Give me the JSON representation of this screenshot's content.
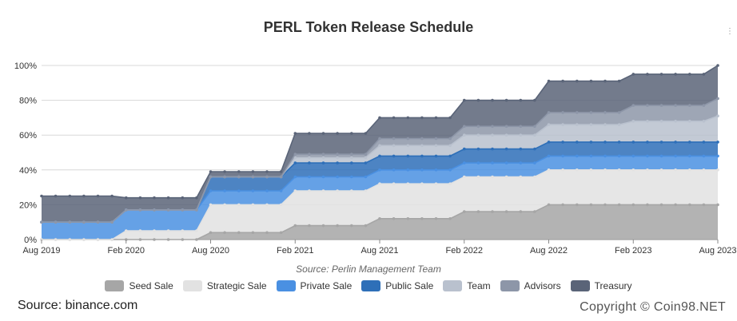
{
  "header": {
    "title": "PERL Token Release Schedule"
  },
  "corner_mark": "⋮",
  "source_note": "Source: Perlin Management Team",
  "footer": {
    "left": "Source: binance.com",
    "right": "Copyright © Coin98.NET"
  },
  "chart_data": {
    "type": "area",
    "stacked": true,
    "title": "PERL Token Release Schedule",
    "xlabel": "",
    "ylabel": "",
    "x_ticks": [
      "Aug 2019",
      "Feb 2020",
      "Aug 2020",
      "Feb 2021",
      "Aug 2021",
      "Feb 2022",
      "Aug 2022",
      "Feb 2023",
      "Aug 2023"
    ],
    "y_ticks": [
      "0%",
      "20%",
      "40%",
      "60%",
      "80%",
      "100%"
    ],
    "ylim": [
      0,
      100
    ],
    "grid": true,
    "legend_position": "bottom",
    "x": [
      "Aug 2019",
      "Sep 2019",
      "Oct 2019",
      "Nov 2019",
      "Dec 2019",
      "Jan 2020",
      "Feb 2020",
      "Mar 2020",
      "Apr 2020",
      "May 2020",
      "Jun 2020",
      "Jul 2020",
      "Aug 2020",
      "Sep 2020",
      "Oct 2020",
      "Nov 2020",
      "Dec 2020",
      "Jan 2021",
      "Feb 2021",
      "Mar 2021",
      "Apr 2021",
      "May 2021",
      "Jun 2021",
      "Jul 2021",
      "Aug 2021",
      "Sep 2021",
      "Oct 2021",
      "Nov 2021",
      "Dec 2021",
      "Jan 2022",
      "Feb 2022",
      "Mar 2022",
      "Apr 2022",
      "May 2022",
      "Jun 2022",
      "Jul 2022",
      "Aug 2022",
      "Sep 2022",
      "Oct 2022",
      "Nov 2022",
      "Dec 2022",
      "Jan 2023",
      "Feb 2023",
      "Mar 2023",
      "Apr 2023",
      "May 2023",
      "Jun 2023",
      "Jul 2023",
      "Aug 2023"
    ],
    "series": [
      {
        "name": "Seed Sale",
        "color": "#a6a6a6",
        "values": [
          0,
          0,
          0,
          0,
          0,
          0,
          0,
          0,
          0,
          0,
          0,
          0,
          4,
          4,
          4,
          4,
          4,
          4,
          8,
          8,
          8,
          8,
          8,
          8,
          12,
          12,
          12,
          12,
          12,
          12,
          16,
          16,
          16,
          16,
          16,
          16,
          20,
          20,
          20,
          20,
          20,
          20,
          20,
          20,
          20,
          20,
          20,
          20,
          20
        ]
      },
      {
        "name": "Strategic Sale",
        "color": "#e2e2e2",
        "values": [
          0,
          0,
          0,
          0,
          0,
          0,
          5,
          5,
          5,
          5,
          5,
          5,
          16,
          16,
          16,
          16,
          16,
          16,
          20,
          20,
          20,
          20,
          20,
          20,
          20,
          20,
          20,
          20,
          20,
          20,
          20,
          20,
          20,
          20,
          20,
          20,
          20,
          20,
          20,
          20,
          20,
          20,
          20,
          20,
          20,
          20,
          20,
          20,
          20
        ]
      },
      {
        "name": "Private Sale",
        "color": "#4a90e2",
        "values": [
          10,
          10,
          10,
          10,
          10,
          10,
          12,
          12,
          12,
          12,
          12,
          12,
          8,
          8,
          8,
          8,
          8,
          8,
          8,
          8,
          8,
          8,
          8,
          8,
          8,
          8,
          8,
          8,
          8,
          8,
          8,
          8,
          8,
          8,
          8,
          8,
          8,
          8,
          8,
          8,
          8,
          8,
          8,
          8,
          8,
          8,
          8,
          8,
          8
        ]
      },
      {
        "name": "Public Sale",
        "color": "#2e6fb8",
        "values": [
          0,
          0,
          0,
          0,
          0,
          0,
          0,
          0,
          0,
          0,
          0,
          0,
          8,
          8,
          8,
          8,
          8,
          8,
          8,
          8,
          8,
          8,
          8,
          8,
          8,
          8,
          8,
          8,
          8,
          8,
          8,
          8,
          8,
          8,
          8,
          8,
          8,
          8,
          8,
          8,
          8,
          8,
          8,
          8,
          8,
          8,
          8,
          8,
          8
        ]
      },
      {
        "name": "Team",
        "color": "#b9c1ce",
        "values": [
          0,
          0,
          0,
          0,
          0,
          0,
          0,
          0,
          0,
          0,
          0,
          0,
          0,
          0,
          0,
          0,
          0,
          0,
          3,
          3,
          3,
          3,
          3,
          3,
          6,
          6,
          6,
          6,
          6,
          6,
          8,
          8,
          8,
          8,
          8,
          8,
          10,
          10,
          10,
          10,
          10,
          10,
          12,
          12,
          12,
          12,
          12,
          12,
          15
        ]
      },
      {
        "name": "Advisors",
        "color": "#8d96a8",
        "values": [
          0,
          0,
          0,
          0,
          0,
          0,
          0,
          0,
          0,
          0,
          0,
          0,
          0,
          0,
          0,
          0,
          0,
          0,
          2,
          2,
          2,
          2,
          2,
          2,
          4,
          4,
          4,
          4,
          4,
          4,
          5,
          5,
          5,
          5,
          5,
          5,
          7,
          7,
          7,
          7,
          7,
          7,
          9,
          9,
          9,
          9,
          9,
          9,
          10
        ]
      },
      {
        "name": "Treasury",
        "color": "#5a6478",
        "values": [
          15,
          15,
          15,
          15,
          15,
          15,
          7,
          7,
          7,
          7,
          7,
          7,
          3,
          3,
          3,
          3,
          3,
          3,
          12,
          12,
          12,
          12,
          12,
          12,
          12,
          12,
          12,
          12,
          12,
          12,
          15,
          15,
          15,
          15,
          15,
          15,
          18,
          18,
          18,
          18,
          18,
          18,
          18,
          18,
          18,
          18,
          18,
          18,
          19
        ]
      }
    ]
  }
}
